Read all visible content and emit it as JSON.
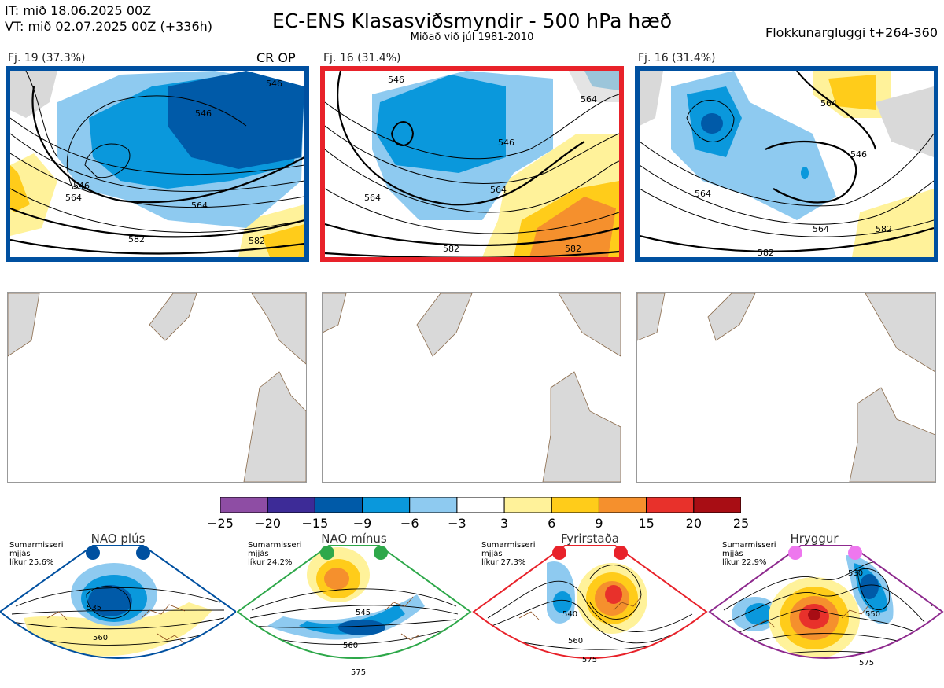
{
  "header": {
    "it_line": "IT: mið 18.06.2025 00Z",
    "vt_line": "VT: mið 02.07.2025 00Z  (+336h)",
    "title": "EC-ENS Klasasviðsmyndir - 500 hPa hæð",
    "subtitle": "Miðað við júl 1981-2010",
    "window": "Flokkunargluggi t+264-360"
  },
  "clusters": [
    {
      "label": "Fj. 19 (37.3%)",
      "tag": "CR OP",
      "border_color": "#0050a0",
      "contour_labels": [
        "546",
        "546",
        "546",
        "564",
        "564",
        "582",
        "582"
      ]
    },
    {
      "label": "Fj. 16 (31.4%)",
      "tag": "",
      "border_color": "#e8222a",
      "contour_labels": [
        "546",
        "546",
        "564",
        "564",
        "564",
        "582",
        "582"
      ]
    },
    {
      "label": "Fj. 16 (31.4%)",
      "tag": "",
      "border_color": "#0050a0",
      "contour_labels": [
        "564",
        "564",
        "546",
        "564",
        "582",
        "582"
      ]
    }
  ],
  "colorbar": {
    "colors": [
      "#8e4da4",
      "#3d2b97",
      "#005aa8",
      "#0a98dc",
      "#8ecaf0",
      "#ffffff",
      "#fff29a",
      "#ffcc1a",
      "#f5902d",
      "#e8312b",
      "#a80d14"
    ],
    "ticks": [
      "−25",
      "−20",
      "−15",
      "−9",
      "−6",
      "−3",
      "3",
      "6",
      "9",
      "15",
      "20",
      "25"
    ]
  },
  "regimes": [
    {
      "name": "NAO plús",
      "season": [
        "Sumarmisseri",
        "mjjás",
        "líkur 25,6%"
      ],
      "color": "#0050a0",
      "dot_color": "#0050a0",
      "labels": [
        "535",
        "560"
      ]
    },
    {
      "name": "NAO mínus",
      "season": [
        "Sumarmisseri",
        "mjjás",
        "líkur 24,2%"
      ],
      "color": "#2ea84a",
      "dot_color": "#2ea84a",
      "labels": [
        "545",
        "560",
        "575"
      ]
    },
    {
      "name": "Fyrirstaða",
      "season": [
        "Sumarmisseri",
        "mjjás",
        "líkur 27,3%"
      ],
      "color": "#e8222a",
      "dot_color": "#e8222a",
      "labels": [
        "540",
        "560",
        "575"
      ]
    },
    {
      "name": "Hryggur",
      "season": [
        "Sumarmisseri",
        "mjjás",
        "líkur 22,9%"
      ],
      "color": "#8e2a8e",
      "dot_color": "#ee77ee",
      "labels": [
        "530",
        "550",
        "575"
      ]
    }
  ]
}
